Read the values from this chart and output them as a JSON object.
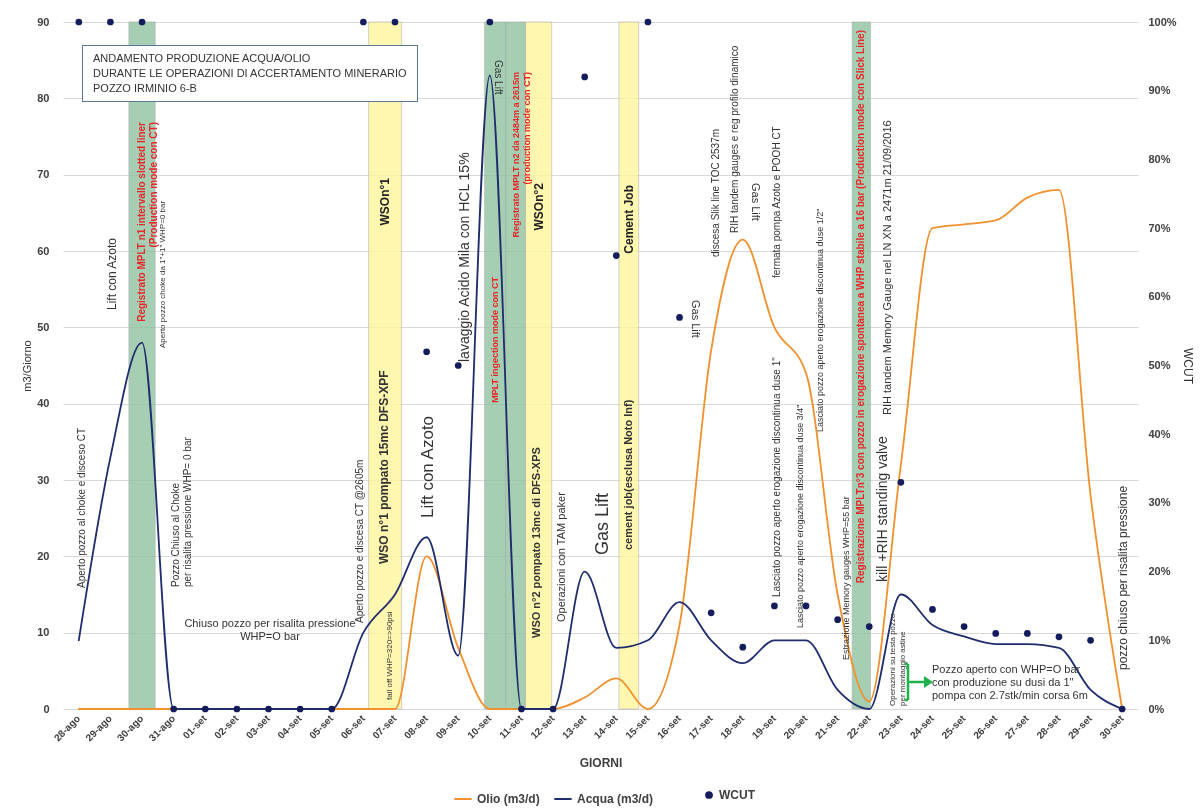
{
  "chart_data": {
    "type": "line",
    "title": "ANDAMENTO PRODUZIONE ACQUA/OLIO\nDURANTE LE OPERAZIONI DI ACCERTAMENTO MINERARIO\nPOZZO IRMINIO 6-B",
    "xlabel": "GIORNI",
    "ylabel": "m3/Giorno",
    "y2label": "WCUT",
    "x": [
      "2016-08-28",
      "2016-08-29",
      "2016-08-30",
      "2016-08-31",
      "2016-09-01",
      "2016-09-02",
      "2016-09-03",
      "2016-09-04",
      "2016-09-05",
      "2016-09-06",
      "2016-09-07",
      "2016-09-08",
      "2016-09-09",
      "2016-09-10",
      "2016-09-11",
      "2016-09-12",
      "2016-09-13",
      "2016-09-14",
      "2016-09-15",
      "2016-09-16",
      "2016-09-17",
      "2016-09-18",
      "2016-09-19",
      "2016-09-20",
      "2016-09-21",
      "2016-09-22",
      "2016-09-23",
      "2016-09-24",
      "2016-09-25",
      "2016-09-26",
      "2016-09-27",
      "2016-09-28",
      "2016-09-29",
      "2016-09-30"
    ],
    "xlim": [
      "2016-08-27T12:00",
      "2016-09-30T12:00"
    ],
    "xticks": [
      {
        "value": "2016-08-28",
        "label": "28-ago"
      },
      {
        "value": "2016-08-29",
        "label": "29-ago"
      },
      {
        "value": "2016-08-30",
        "label": "30-ago"
      },
      {
        "value": "2016-08-31",
        "label": "31-ago"
      },
      {
        "value": "2016-09-01",
        "label": "01-set"
      },
      {
        "value": "2016-09-02",
        "label": "02-set"
      },
      {
        "value": "2016-09-03",
        "label": "03-set"
      },
      {
        "value": "2016-09-04",
        "label": "04-set"
      },
      {
        "value": "2016-09-05",
        "label": "05-set"
      },
      {
        "value": "2016-09-06",
        "label": "06-set"
      },
      {
        "value": "2016-09-07",
        "label": "07-set"
      },
      {
        "value": "2016-09-08",
        "label": "08-set"
      },
      {
        "value": "2016-09-09",
        "label": "09-set"
      },
      {
        "value": "2016-09-10",
        "label": "10-set"
      },
      {
        "value": "2016-09-11",
        "label": "11-set"
      },
      {
        "value": "2016-09-12",
        "label": "12-set"
      },
      {
        "value": "2016-09-13",
        "label": "13-set"
      },
      {
        "value": "2016-09-14",
        "label": "14-set"
      },
      {
        "value": "2016-09-15",
        "label": "15-set"
      },
      {
        "value": "2016-09-16",
        "label": "16-set"
      },
      {
        "value": "2016-09-17",
        "label": "17-set"
      },
      {
        "value": "2016-09-18",
        "label": "18-set"
      },
      {
        "value": "2016-09-19",
        "label": "19-set"
      },
      {
        "value": "2016-09-20",
        "label": "20-set"
      },
      {
        "value": "2016-09-21",
        "label": "21-set"
      },
      {
        "value": "2016-09-22",
        "label": "22-set"
      },
      {
        "value": "2016-09-23",
        "label": "23-set"
      },
      {
        "value": "2016-09-24",
        "label": "24-set"
      },
      {
        "value": "2016-09-25",
        "label": "25-set"
      },
      {
        "value": "2016-09-26",
        "label": "26-set"
      },
      {
        "value": "2016-09-27",
        "label": "27-set"
      },
      {
        "value": "2016-09-28",
        "label": "28-set"
      },
      {
        "value": "2016-09-29",
        "label": "29-set"
      },
      {
        "value": "2016-09-30",
        "label": "30-set"
      }
    ],
    "ylim": [
      0,
      90
    ],
    "yticks": [
      0,
      10,
      20,
      30,
      40,
      50,
      60,
      70,
      80,
      90
    ],
    "y2lim": [
      0,
      100
    ],
    "y2ticks": [
      {
        "value": 0,
        "label": "0%"
      },
      {
        "value": 10,
        "label": "10%"
      },
      {
        "value": 20,
        "label": "20%"
      },
      {
        "value": 30,
        "label": "30%"
      },
      {
        "value": 40,
        "label": "40%"
      },
      {
        "value": 50,
        "label": "50%"
      },
      {
        "value": 60,
        "label": "60%"
      },
      {
        "value": 70,
        "label": "70%"
      },
      {
        "value": 80,
        "label": "80%"
      },
      {
        "value": 90,
        "label": "90%"
      },
      {
        "value": 100,
        "label": "100%"
      }
    ],
    "grid": "y",
    "legend": "bottom",
    "series": [
      {
        "name": "Olio (m3/d)",
        "color": "#f0902f",
        "values": [
          0,
          0,
          0,
          0,
          0,
          0,
          0,
          0,
          0,
          0,
          0,
          20,
          8,
          0,
          0,
          0,
          1.5,
          4,
          0,
          11,
          47,
          61.5,
          50,
          44,
          15,
          1,
          32,
          63,
          63.5,
          64,
          67,
          68,
          28,
          0
        ]
      },
      {
        "name": "Acqua (m3/d)",
        "color": "#1f2d6e",
        "values": [
          9,
          33,
          48,
          0,
          0,
          0,
          0,
          0,
          0,
          10,
          15,
          22.5,
          7,
          83,
          0,
          0,
          18,
          8,
          9,
          14,
          9,
          6,
          9,
          9,
          2.5,
          0,
          15,
          11,
          9.5,
          8.5,
          8.5,
          8,
          2.5,
          0
        ]
      },
      {
        "name": "WCUT",
        "type": "scatter",
        "axis": "y2",
        "color": "#141c5c",
        "values": [
          100,
          100,
          100,
          0,
          0,
          0,
          0,
          0,
          0,
          100,
          100,
          52,
          50,
          100,
          0,
          0,
          92,
          66,
          100,
          57,
          14,
          9,
          15,
          15,
          13,
          12,
          33,
          14.5,
          12,
          11,
          11,
          10.5,
          10,
          0
        ]
      }
    ],
    "bands": [
      {
        "axis": "x",
        "from": "2016-08-29T14:00",
        "to": "2016-08-30T10:00",
        "label": "Registrato MPLT n1 intervallo slotted liner\n(Production mode con CT)",
        "color": "#8fc3a0"
      },
      {
        "axis": "x",
        "from": "2016-09-06T04:00",
        "to": "2016-09-07T05:00",
        "label": "WSOn°1",
        "color": "#fff59d"
      },
      {
        "axis": "x",
        "from": "2016-09-09T20:00",
        "to": "2016-09-10T12:00",
        "label": "MPLT ingection mode con CT",
        "color": "#8fc3a0"
      },
      {
        "axis": "x",
        "from": "2016-09-10T12:00",
        "to": "2016-09-11T03:00",
        "label": "Registrato MPLT n2 da 2484m a 2615m\n(production mode con CT)",
        "color": "#8fc3a0"
      },
      {
        "axis": "x",
        "from": "2016-09-11T03:00",
        "to": "2016-09-11T23:00",
        "label": "WSOn°2",
        "color": "#fff59d"
      },
      {
        "axis": "x",
        "from": "2016-09-14T02:00",
        "to": "2016-09-14T17:00",
        "label": "Cement Job",
        "color": "#fff59d"
      },
      {
        "axis": "x",
        "from": "2016-09-21T11:00",
        "to": "2016-09-22T01:00",
        "label": "Registrazione MPLTn°3 con pozzo in erogazione spontanea a WHP stabile a 16 bar (Production mode con Slick Line)",
        "color": "#8fc3a0"
      }
    ],
    "annotations": [
      "Aperto pozzo al choke e disceso CT",
      "Lift con Azoto",
      "Aperto pozzo choke da 1\"+1\" WHP=0 bar",
      "Pozzo Chiuso al Choke\nper risalita pressione WHP= 0 bar",
      "Chiuso pozzo per risalita pressione\nWHP=O bar",
      "Aperto pozzo e discesa CT @2605m",
      "WSO n°1 pompato 15mc DFS-XPF",
      "fall off WHP=320=>90psi",
      "Lift con Azoto",
      "lavaggio Acido Mila con HCL 15%",
      "Gas Lift",
      "WSO n°2 pompato 13mc di DFS-XPS",
      "Operazioni con TAM paker",
      "Gas Lift",
      "cement job(esclusa Noto Inf)",
      "Gas Lift",
      "discesa Slik line TOC 2537m",
      "RIH tandem gauges e reg profilo dinamico",
      "Gas Lift",
      "fermata pompa Azoto e POOH CT",
      "Lasciato pozzo aperto erogazione discontinua duse 1\"",
      "Lasciato pozzo aperto erogazione discontinua duse 3/4\"",
      "Lasciato pozzo aperto erogazione discontinua duse 1/2\"",
      "Estrazione Memory gauges WHP=55 bar",
      "kill +RIH standing valve",
      "RIH tandem Memory Gauge nel LN XN a 2471m 21/09/2016",
      "Operazioni su testa pozzo\nper montaggio astine",
      "Pozzo aperto con WHP=O bar\ncon produzione su dusi da 1\"\npompa con 2.7stk/min corsa 6m",
      "pozzo chiuso per risalita pressione"
    ]
  }
}
